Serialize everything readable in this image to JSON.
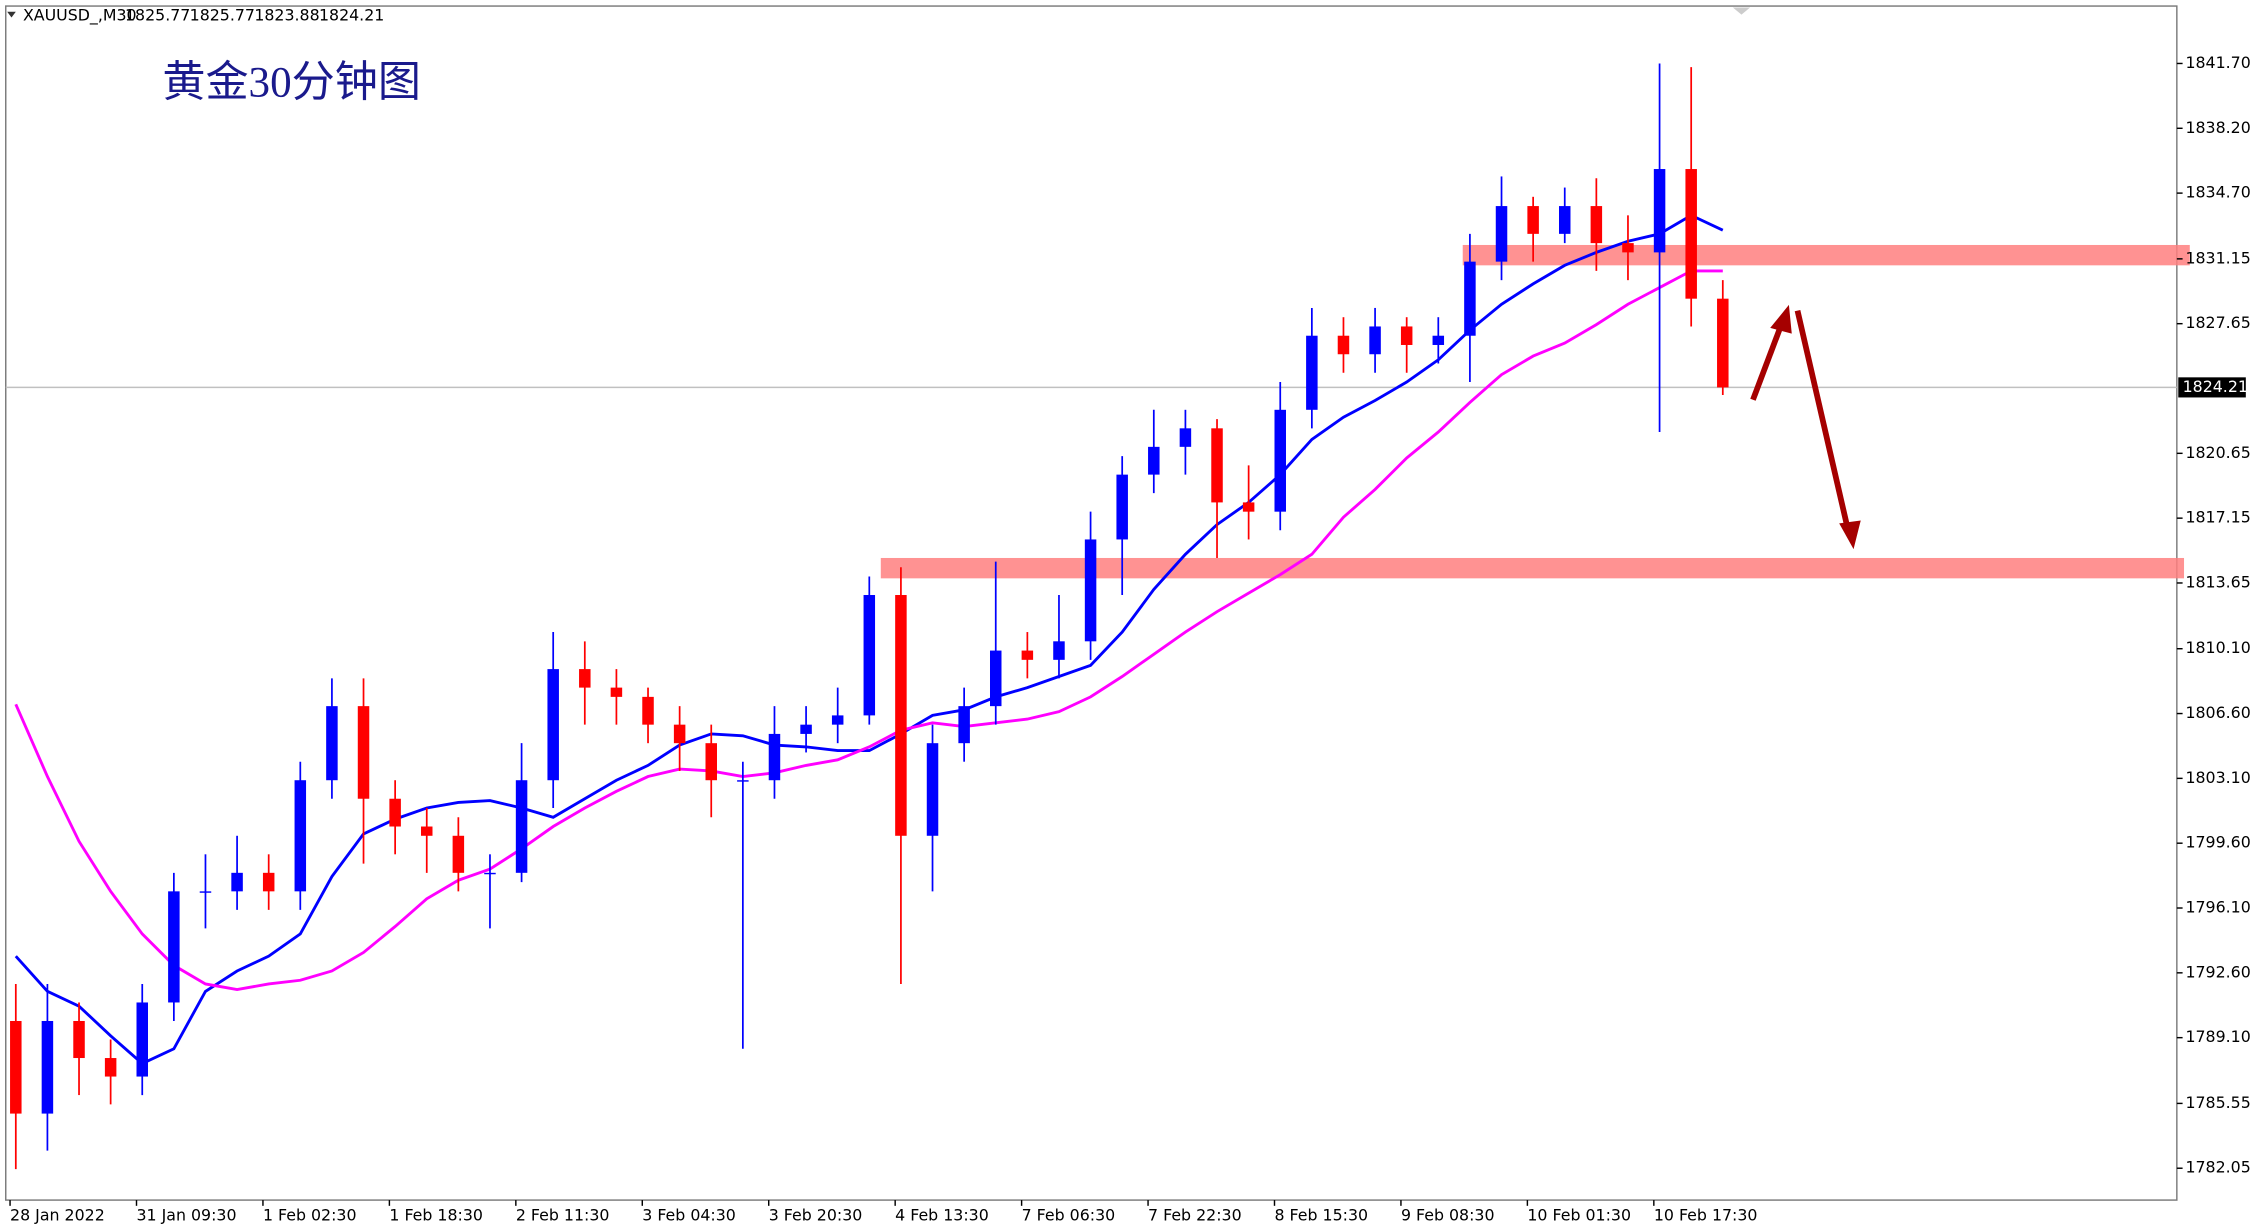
{
  "chart_data": {
    "type": "candlestick",
    "symbol": "XAUUSD_,M30",
    "header_ohlc": [
      1825.77,
      1825.77,
      1823.88,
      1824.21
    ],
    "title": "黄金30分钟图",
    "categories": [
      "28 Jan 2022",
      null,
      null,
      null,
      "31 Jan 09:30",
      null,
      null,
      null,
      "1 Feb 02:30",
      null,
      null,
      null,
      "1 Feb 18:30",
      null,
      null,
      null,
      "2 Feb 11:30",
      null,
      null,
      null,
      "3 Feb 04:30",
      null,
      null,
      null,
      "3 Feb 20:30",
      null,
      null,
      null,
      "4 Feb 13:30",
      null,
      null,
      null,
      "7 Feb 06:30",
      null,
      null,
      null,
      "7 Feb 22:30",
      null,
      null,
      null,
      "8 Feb 15:30",
      null,
      null,
      null,
      "9 Feb 08:30",
      null,
      null,
      null,
      "10 Feb 01:30",
      null,
      null,
      null,
      "10 Feb 17:30",
      null,
      null
    ],
    "open": [
      1790,
      1785,
      1790,
      1788,
      1787,
      1791,
      1797,
      1797,
      1798,
      1797,
      1803,
      1807,
      1802,
      1800.5,
      1800,
      1798,
      1798,
      1803,
      1809,
      1808,
      1807.5,
      1806,
      1805,
      1803,
      1803,
      1805.5,
      1806,
      1806.5,
      1813,
      1800,
      1805,
      1807,
      1810,
      1809.5,
      1810.5,
      1816,
      1819.5,
      1821,
      1822,
      1818,
      1817.5,
      1823,
      1827,
      1826,
      1827.5,
      1826.5,
      1827,
      1831,
      1834,
      1832.5,
      1834,
      1832,
      1831.5,
      1836,
      1829
    ],
    "high": [
      1792,
      1792,
      1791,
      1789,
      1792,
      1798,
      1799,
      1800,
      1799,
      1804,
      1808.5,
      1808.5,
      1803,
      1801.5,
      1801,
      1799,
      1805,
      1811,
      1810.5,
      1809,
      1808,
      1807,
      1806,
      1804,
      1807,
      1807,
      1808,
      1814,
      1814.5,
      1806,
      1808,
      1814.8,
      1811,
      1813,
      1817.5,
      1820.5,
      1823,
      1823,
      1822.5,
      1820,
      1824.5,
      1828.5,
      1828,
      1828.5,
      1828,
      1828,
      1832.5,
      1835.6,
      1834.5,
      1835,
      1835.5,
      1833.5,
      1841.7,
      1841.5,
      1830
    ],
    "low": [
      1782,
      1783,
      1786,
      1785.5,
      1786,
      1790,
      1795,
      1796,
      1796,
      1796,
      1802,
      1798.5,
      1799,
      1798,
      1797,
      1795,
      1797.5,
      1801.5,
      1806,
      1806,
      1805,
      1803.5,
      1801,
      1788.5,
      1802,
      1804.5,
      1805,
      1806,
      1792,
      1797,
      1804,
      1806,
      1808.5,
      1808.5,
      1809.5,
      1813,
      1818.5,
      1819.5,
      1815,
      1816,
      1816.5,
      1822,
      1825,
      1825,
      1825,
      1825.5,
      1824.5,
      1830,
      1831,
      1832,
      1830.5,
      1830,
      1821.8,
      1827.5,
      1823.8
    ],
    "close": [
      1785,
      1790,
      1788,
      1787,
      1791,
      1797,
      1797,
      1798,
      1797,
      1803,
      1807,
      1802,
      1800.5,
      1800,
      1798,
      1798,
      1803,
      1809,
      1808,
      1807.5,
      1806,
      1805,
      1803,
      1803,
      1805.5,
      1806,
      1806.5,
      1813,
      1800,
      1805,
      1807,
      1810,
      1809.5,
      1810.5,
      1816,
      1819.5,
      1821,
      1822,
      1818,
      1817.5,
      1823,
      1827,
      1826,
      1827.5,
      1826.5,
      1827,
      1831,
      1834,
      1832.5,
      1834,
      1832,
      1831.5,
      1836,
      1829,
      1824.21
    ],
    "up_color": "#0000ff",
    "down_color": "#ff0000",
    "series": [
      {
        "color": "#0000ff",
        "values": [
          1793.5,
          1791.6,
          1790.8,
          1789.2,
          1787.7,
          1788.5,
          1791.6,
          1792.7,
          1793.5,
          1794.7,
          1797.8,
          1800.1,
          1800.9,
          1801.5,
          1801.8,
          1801.9,
          1801.5,
          1801.0,
          1802.0,
          1803.0,
          1803.8,
          1804.9,
          1805.5,
          1805.4,
          1804.9,
          1804.8,
          1804.6,
          1804.6,
          1805.5,
          1806.5,
          1806.8,
          1807.5,
          1808.0,
          1808.6,
          1809.2,
          1811.0,
          1813.3,
          1815.2,
          1816.8,
          1818.0,
          1819.5,
          1821.4,
          1822.6,
          1823.5,
          1824.5,
          1825.7,
          1827.3,
          1828.7,
          1829.8,
          1830.8,
          1831.5,
          1832.1,
          1832.5,
          1833.5,
          1832.7
        ]
      },
      {
        "color": "#ff00ff",
        "values": [
          1807.1,
          1803.2,
          1799.7,
          1797.0,
          1794.7,
          1793.0,
          1792.0,
          1791.7,
          1792.0,
          1792.2,
          1792.7,
          1793.7,
          1795.1,
          1796.6,
          1797.6,
          1798.2,
          1799.3,
          1800.5,
          1801.5,
          1802.4,
          1803.2,
          1803.6,
          1803.5,
          1803.2,
          1803.4,
          1803.8,
          1804.1,
          1804.8,
          1805.7,
          1806.1,
          1805.9,
          1806.1,
          1806.3,
          1806.7,
          1807.5,
          1808.6,
          1809.8,
          1811.0,
          1812.1,
          1813.1,
          1814.1,
          1815.2,
          1817.2,
          1818.7,
          1820.4,
          1821.8,
          1823.4,
          1824.9,
          1825.9,
          1826.6,
          1827.6,
          1828.7,
          1829.6,
          1830.5,
          1830.5
        ]
      }
    ],
    "zones": [
      {
        "low": 1830.8,
        "high": 1831.9,
        "color": "#ff7f7f"
      },
      {
        "low": 1813.9,
        "high": 1815.0,
        "color": "#ff7f7f"
      }
    ],
    "ylim": [
      1780.33,
      1844.8
    ],
    "yticks": [
      {
        "value": 1841.7,
        "label": "1841.70"
      },
      {
        "value": 1838.2,
        "label": "1838.20"
      },
      {
        "value": 1834.7,
        "label": "1834.70"
      },
      1831.15,
      1827.65,
      1820.65,
      1817.15,
      1813.65,
      {
        "value": 1810.1,
        "label": "1810.10"
      },
      {
        "value": 1806.6,
        "label": "1806.60"
      },
      {
        "value": 1803.1,
        "label": "1803.10"
      },
      {
        "value": 1799.6,
        "label": "1799.60"
      },
      {
        "value": 1796.1,
        "label": "1796.10"
      },
      {
        "value": 1792.6,
        "label": "1792.60"
      },
      {
        "value": 1789.1,
        "label": "1789.10"
      },
      1785.55,
      1782.05
    ]
  }
}
